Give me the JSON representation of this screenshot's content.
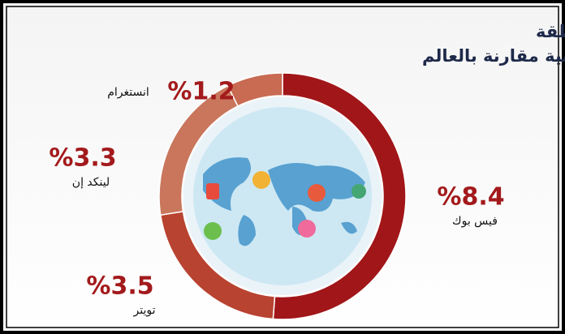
{
  "chart_data": {
    "type": "donut",
    "title": [
      "نسبة مستخدمي وسائل التواصل الاجتماعي في المنطقة",
      "العربية مقارنة بالعالم"
    ],
    "categories": [
      "فيس بوك",
      "تويتر",
      "لينكد إن",
      "انستغرام"
    ],
    "values": [
      8.4,
      3.5,
      3.3,
      1.2
    ],
    "value_labels": [
      "%8.4",
      "%3.5",
      "%3.3",
      "%1.2"
    ],
    "colors": [
      "#a11619",
      "#b84330",
      "#c9765c",
      "#c86b52"
    ]
  }
}
